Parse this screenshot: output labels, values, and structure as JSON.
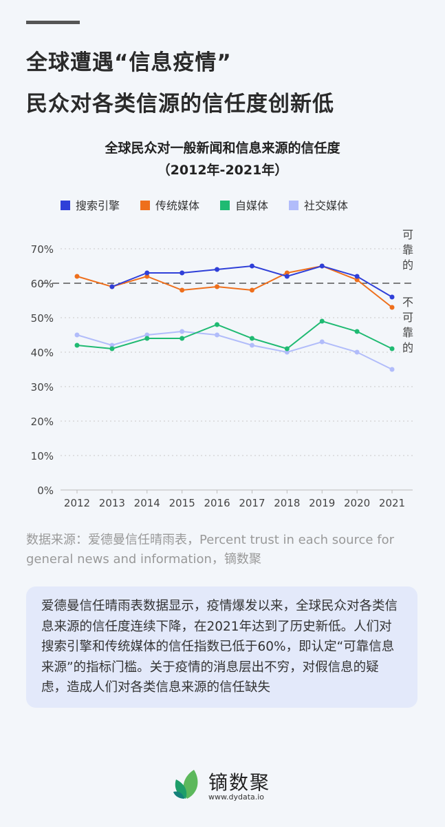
{
  "title_line1": "全球遭遇“信息疫情”",
  "title_line2": "民众对各类信源的信任度创新低",
  "chart_data": {
    "type": "line",
    "title": "全球民众对一般新闻和信息来源的信任度",
    "subtitle": "（2012年-2021年）",
    "x": [
      "2012",
      "2013",
      "2014",
      "2015",
      "2016",
      "2017",
      "2018",
      "2019",
      "2020",
      "2021"
    ],
    "yticks": [
      "0%",
      "10%",
      "20%",
      "30%",
      "40%",
      "50%",
      "60%",
      "70%"
    ],
    "ylim": [
      0,
      70
    ],
    "reference_line": 60,
    "reliable_label": "可靠的",
    "unreliable_label": "不可靠的",
    "legend": "top",
    "series": [
      {
        "name": "搜索引擎",
        "color": "#2f3fd8",
        "values": [
          null,
          59,
          63,
          63,
          64,
          65,
          62,
          65,
          62,
          56
        ]
      },
      {
        "name": "传统媒体",
        "color": "#ee6f1c",
        "values": [
          62,
          59,
          62,
          58,
          59,
          58,
          63,
          65,
          61,
          53
        ]
      },
      {
        "name": "自媒体",
        "color": "#1fba72",
        "values": [
          42,
          41,
          44,
          44,
          48,
          44,
          41,
          49,
          46,
          41
        ]
      },
      {
        "name": "社交媒体",
        "color": "#b1bcfa",
        "values": [
          45,
          42,
          45,
          46,
          45,
          42,
          40,
          43,
          40,
          35
        ]
      }
    ]
  },
  "source": "数据来源：爱德曼信任晴雨表，Percent trust in each source for general news and information，镝数聚",
  "note": "爱德曼信任晴雨表数据显示，疫情爆发以来，全球民众对各类信息来源的信任度连续下降，在2021年达到了历史新低。人们对搜索引擎和传统媒体的信任指数已低于60%，即认定“可靠信息来源”的指标门槛。关于疫情的消息层出不穷，对假信息的疑虑，造成人们对各类信息来源的信任缺失",
  "brand": "镝数聚",
  "url": "www.dydata.io"
}
